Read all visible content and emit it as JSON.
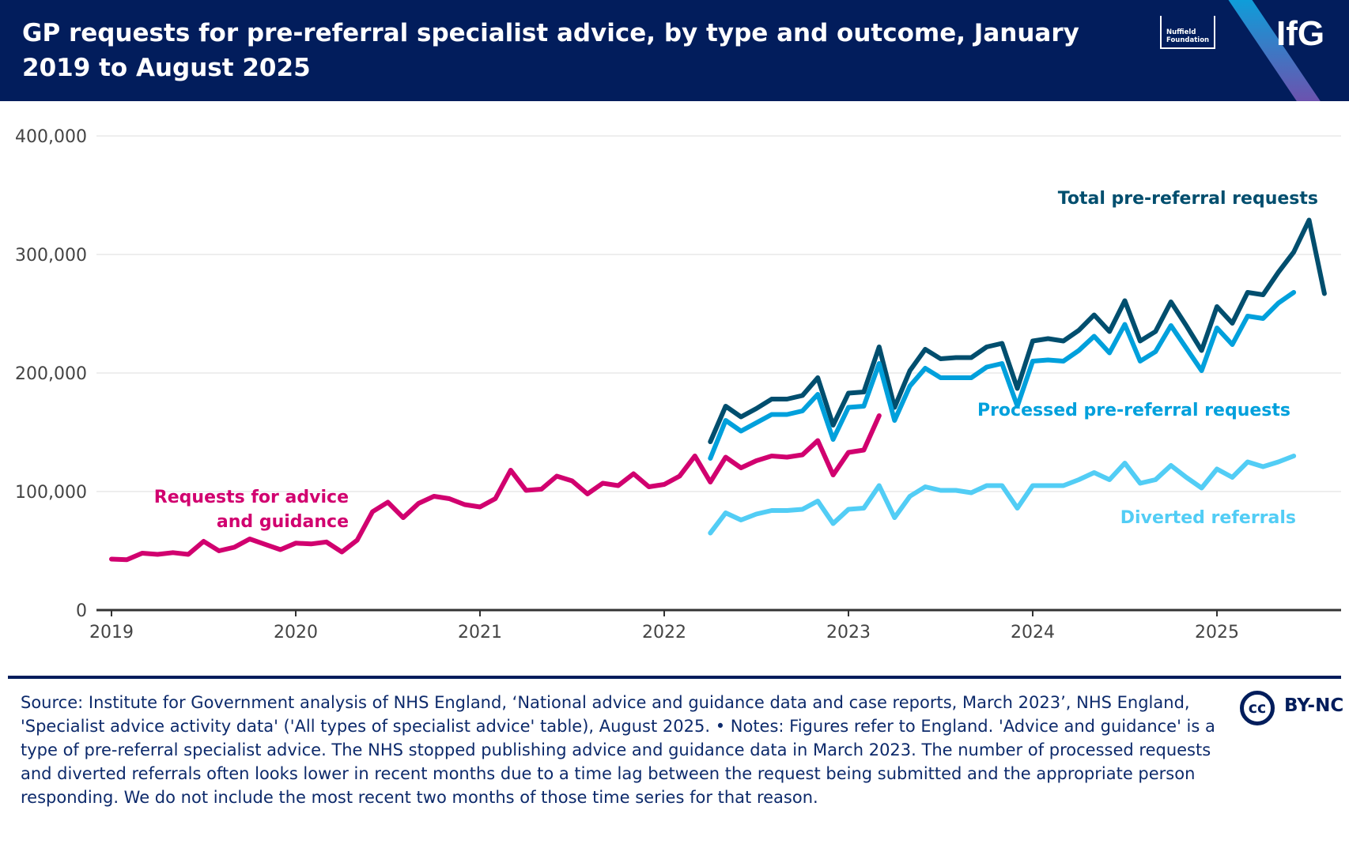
{
  "header": {
    "title": "GP requests for pre-referral specialist advice, by type and outcome, January 2019 to August 2025",
    "logo_nuffield": "Nuffield Foundation",
    "logo_ifg": "IfG"
  },
  "chart_data": {
    "type": "line",
    "title": "GP requests for pre-referral specialist advice, by type and outcome, January 2019 to August 2025",
    "xlabel": "",
    "ylabel": "",
    "ylim": [
      0,
      400000
    ],
    "yticks": [
      0,
      100000,
      200000,
      300000,
      400000
    ],
    "ytick_labels": [
      "0",
      "100,000",
      "200,000",
      "300,000",
      "400,000"
    ],
    "xtick_labels": [
      "2019",
      "2020",
      "2021",
      "2022",
      "2023",
      "2024",
      "2025"
    ],
    "grid": true,
    "x_unit": "month",
    "series": [
      {
        "name": "Requests for advice and guidance",
        "label_lines": [
          "Requests for advice",
          "and guidance"
        ],
        "color": "#d1006f",
        "start": "2019-01",
        "values": [
          43000,
          42500,
          48000,
          47000,
          48500,
          47000,
          58000,
          50000,
          53000,
          60000,
          55500,
          51000,
          56500,
          55800,
          57500,
          49000,
          59000,
          83000,
          91000,
          78000,
          90000,
          96000,
          94000,
          89000,
          87000,
          94000,
          118000,
          101000,
          102000,
          113000,
          109000,
          98000,
          107000,
          105000,
          115000,
          104000,
          106000,
          113000,
          130000,
          108000,
          129000,
          120000,
          126000,
          130000,
          129000,
          131000,
          143000,
          114000,
          133000,
          135000,
          164000
        ]
      },
      {
        "name": "Total pre-referral requests",
        "label_lines": [
          "Total pre-referral requests"
        ],
        "color": "#004e6e",
        "start": "2022-04",
        "values": [
          142000,
          172000,
          163000,
          170000,
          178000,
          178000,
          181000,
          196000,
          156000,
          183000,
          184000,
          222000,
          171000,
          202000,
          220000,
          212000,
          213000,
          213000,
          222000,
          225000,
          187000,
          227000,
          229000,
          227000,
          236000,
          249000,
          235000,
          261000,
          227000,
          235000,
          260000,
          240000,
          219000,
          256000,
          242000,
          268000,
          266000,
          285000,
          302000,
          329000,
          267000
        ]
      },
      {
        "name": "Processed pre-referral requests",
        "label_lines": [
          "Processed pre-referral requests"
        ],
        "color": "#00a0dc",
        "start": "2022-04",
        "values": [
          128000,
          160000,
          151000,
          158000,
          165000,
          165000,
          168000,
          182000,
          144000,
          171000,
          172000,
          208000,
          160000,
          189000,
          204000,
          196000,
          196000,
          196000,
          205000,
          208000,
          172000,
          210000,
          211000,
          210000,
          219000,
          231000,
          217000,
          241000,
          210000,
          218000,
          240000,
          221000,
          202000,
          238000,
          224000,
          248000,
          246000,
          259000,
          268000
        ]
      },
      {
        "name": "Diverted referrals",
        "label_lines": [
          "Diverted referrals"
        ],
        "color": "#52cdf5",
        "start": "2022-04",
        "values": [
          65000,
          82000,
          76000,
          81000,
          84000,
          84000,
          85000,
          92000,
          73000,
          85000,
          86000,
          105000,
          78000,
          96000,
          104000,
          101000,
          101000,
          99000,
          105000,
          105000,
          86000,
          105000,
          105000,
          105000,
          110000,
          116000,
          110000,
          124000,
          107000,
          110000,
          122000,
          112000,
          103000,
          119000,
          112000,
          125000,
          121000,
          125000,
          130000
        ]
      }
    ]
  },
  "footer": {
    "text": "Source: Institute for Government analysis of NHS England, ‘National advice and guidance data and case reports, March 2023’, NHS England, 'Specialist advice activity data' ('All types of specialist advice' table), August 2025. • Notes: Figures refer to England. 'Advice and guidance' is a type of pre-referral specialist advice. The NHS stopped publishing advice and guidance data in March 2023. The number of processed requests and diverted referrals often looks lower in recent months due to a time lag between the request being submitted and the appropriate person responding. We do not include the most recent two months of those time series for that reason.",
    "license_icon": "cc",
    "license": "BY-NC"
  }
}
